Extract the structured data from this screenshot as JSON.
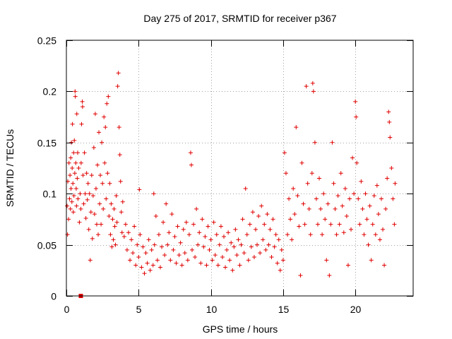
{
  "chart_data": {
    "type": "scatter",
    "title": "Day 275 of 2017, SRMTID for receiver p367",
    "xlabel": "GPS time / hours",
    "ylabel": "SRMTID / TECUs",
    "xlim": [
      0,
      24
    ],
    "ylim": [
      0,
      0.25
    ],
    "xticks": [
      0,
      5,
      10,
      15,
      20
    ],
    "xtick_labels": [
      "0",
      "5",
      "10",
      "15",
      "20"
    ],
    "yticks": [
      0,
      0.05,
      0.1,
      0.15,
      0.2,
      0.25
    ],
    "ytick_labels": [
      "0",
      "0.05",
      "0.1",
      "0.15",
      "0.2",
      "0.25"
    ],
    "grid": true,
    "marker": "+",
    "color": "#e00000",
    "series": [
      {
        "name": "SRMTID",
        "points": [
          [
            0.05,
            0.088
          ],
          [
            0.08,
            0.06
          ],
          [
            0.1,
            0.112
          ],
          [
            0.15,
            0.075
          ],
          [
            0.18,
            0.13
          ],
          [
            0.22,
            0.095
          ],
          [
            0.25,
            0.118
          ],
          [
            0.28,
            0.085
          ],
          [
            0.3,
            0.135
          ],
          [
            0.32,
            0.105
          ],
          [
            0.35,
            0.15
          ],
          [
            0.38,
            0.092
          ],
          [
            0.4,
            0.125
          ],
          [
            0.42,
            0.168
          ],
          [
            0.45,
            0.11
          ],
          [
            0.48,
            0.082
          ],
          [
            0.5,
            0.14
          ],
          [
            0.52,
            0.098
          ],
          [
            0.55,
            0.152
          ],
          [
            0.58,
            0.12
          ],
          [
            0.6,
            0.2
          ],
          [
            0.62,
            0.195
          ],
          [
            0.65,
            0.13
          ],
          [
            0.68,
            0.105
          ],
          [
            0.7,
            0.088
          ],
          [
            0.72,
            0.178
          ],
          [
            0.75,
            0.115
          ],
          [
            0.78,
            0.14
          ],
          [
            0.8,
            0.095
          ],
          [
            0.85,
            0.125
          ],
          [
            0.9,
            0.072
          ],
          [
            0.95,
            0.1
          ],
          [
            1.0,
            0.085
          ],
          [
            1.02,
            0.13
          ],
          [
            1.05,
            0.168
          ],
          [
            1.1,
            0.19
          ],
          [
            1.12,
            0.185
          ],
          [
            1.15,
            0.118
          ],
          [
            1.2,
            0.09
          ],
          [
            1.25,
            0.14
          ],
          [
            1.3,
            0.1
          ],
          [
            1.35,
            0.076
          ],
          [
            1.4,
            0.12
          ],
          [
            1.45,
            0.094
          ],
          [
            1.5,
            0.11
          ],
          [
            1.55,
            0.065
          ],
          [
            1.6,
            0.1
          ],
          [
            1.65,
            0.035
          ],
          [
            1.7,
            0.082
          ],
          [
            1.75,
            0.118
          ],
          [
            1.8,
            0.056
          ],
          [
            1.85,
            0.098
          ],
          [
            1.9,
            0.145
          ],
          [
            1.95,
            0.08
          ],
          [
            2.0,
            0.178
          ],
          [
            2.05,
            0.105
          ],
          [
            2.1,
            0.07
          ],
          [
            2.15,
            0.128
          ],
          [
            2.2,
            0.06
          ],
          [
            2.25,
            0.16
          ],
          [
            2.3,
            0.09
          ],
          [
            2.35,
            0.118
          ],
          [
            2.4,
            0.07
          ],
          [
            2.45,
            0.15
          ],
          [
            2.5,
            0.11
          ],
          [
            2.55,
            0.085
          ],
          [
            2.6,
            0.175
          ],
          [
            2.65,
            0.13
          ],
          [
            2.7,
            0.165
          ],
          [
            2.75,
            0.095
          ],
          [
            2.8,
            0.188
          ],
          [
            2.85,
            0.12
          ],
          [
            2.9,
            0.195
          ],
          [
            2.95,
            0.078
          ],
          [
            3.0,
            0.11
          ],
          [
            3.05,
            0.06
          ],
          [
            3.1,
            0.09
          ],
          [
            3.15,
            0.048
          ],
          [
            3.2,
            0.075
          ],
          [
            3.25,
            0.055
          ],
          [
            3.3,
            0.085
          ],
          [
            3.35,
            0.068
          ],
          [
            3.4,
            0.05
          ],
          [
            3.45,
            0.098
          ],
          [
            3.5,
            0.072
          ],
          [
            3.55,
            0.205
          ],
          [
            3.6,
            0.218
          ],
          [
            3.65,
            0.165
          ],
          [
            3.7,
            0.138
          ],
          [
            3.75,
            0.112
          ],
          [
            3.8,
            0.082
          ],
          [
            3.85,
            0.062
          ],
          [
            3.9,
            0.092
          ],
          [
            4.0,
            0.058
          ],
          [
            4.1,
            0.07
          ],
          [
            4.2,
            0.045
          ],
          [
            4.3,
            0.062
          ],
          [
            4.4,
            0.035
          ],
          [
            4.5,
            0.055
          ],
          [
            4.6,
            0.042
          ],
          [
            4.7,
            0.068
          ],
          [
            4.8,
            0.03
          ],
          [
            4.9,
            0.05
          ],
          [
            5.0,
            0.038
          ],
          [
            5.05,
            0.104
          ],
          [
            5.1,
            0.06
          ],
          [
            5.2,
            0.028
          ],
          [
            5.3,
            0.048
          ],
          [
            5.4,
            0.022
          ],
          [
            5.5,
            0.042
          ],
          [
            5.6,
            0.032
          ],
          [
            5.7,
            0.055
          ],
          [
            5.8,
            0.025
          ],
          [
            5.9,
            0.045
          ],
          [
            6.0,
            0.03
          ],
          [
            6.05,
            0.1
          ],
          [
            6.1,
            0.05
          ],
          [
            6.2,
            0.078
          ],
          [
            6.3,
            0.035
          ],
          [
            6.4,
            0.06
          ],
          [
            6.5,
            0.028
          ],
          [
            6.6,
            0.048
          ],
          [
            6.7,
            0.072
          ],
          [
            6.8,
            0.04
          ],
          [
            6.9,
            0.09
          ],
          [
            7.0,
            0.05
          ],
          [
            7.1,
            0.062
          ],
          [
            7.2,
            0.035
          ],
          [
            7.3,
            0.08
          ],
          [
            7.4,
            0.045
          ],
          [
            7.5,
            0.058
          ],
          [
            7.6,
            0.032
          ],
          [
            7.7,
            0.068
          ],
          [
            7.8,
            0.04
          ],
          [
            7.9,
            0.052
          ],
          [
            8.0,
            0.03
          ],
          [
            8.1,
            0.065
          ],
          [
            8.2,
            0.042
          ],
          [
            8.3,
            0.072
          ],
          [
            8.4,
            0.035
          ],
          [
            8.5,
            0.06
          ],
          [
            8.6,
            0.14
          ],
          [
            8.65,
            0.128
          ],
          [
            8.7,
            0.045
          ],
          [
            8.8,
            0.07
          ],
          [
            8.9,
            0.038
          ],
          [
            9.0,
            0.085
          ],
          [
            9.1,
            0.05
          ],
          [
            9.2,
            0.062
          ],
          [
            9.3,
            0.032
          ],
          [
            9.4,
            0.075
          ],
          [
            9.5,
            0.048
          ],
          [
            9.6,
            0.058
          ],
          [
            9.7,
            0.03
          ],
          [
            9.8,
            0.068
          ],
          [
            9.9,
            0.045
          ],
          [
            10.0,
            0.055
          ],
          [
            10.1,
            0.035
          ],
          [
            10.2,
            0.072
          ],
          [
            10.3,
            0.04
          ],
          [
            10.4,
            0.06
          ],
          [
            10.5,
            0.03
          ],
          [
            10.6,
            0.05
          ],
          [
            10.7,
            0.068
          ],
          [
            10.8,
            0.038
          ],
          [
            10.9,
            0.058
          ],
          [
            11.0,
            0.028
          ],
          [
            11.1,
            0.045
          ],
          [
            11.2,
            0.062
          ],
          [
            11.3,
            0.035
          ],
          [
            11.4,
            0.052
          ],
          [
            11.5,
            0.025
          ],
          [
            11.6,
            0.048
          ],
          [
            11.7,
            0.065
          ],
          [
            11.8,
            0.04
          ],
          [
            11.9,
            0.055
          ],
          [
            12.0,
            0.03
          ],
          [
            12.1,
            0.05
          ],
          [
            12.2,
            0.075
          ],
          [
            12.3,
            0.042
          ],
          [
            12.4,
            0.105
          ],
          [
            12.5,
            0.06
          ],
          [
            12.6,
            0.035
          ],
          [
            12.7,
            0.07
          ],
          [
            12.8,
            0.048
          ],
          [
            12.9,
            0.082
          ],
          [
            13.0,
            0.038
          ],
          [
            13.1,
            0.065
          ],
          [
            13.2,
            0.05
          ],
          [
            13.3,
            0.078
          ],
          [
            13.4,
            0.042
          ],
          [
            13.5,
            0.088
          ],
          [
            13.6,
            0.055
          ],
          [
            13.7,
            0.07
          ],
          [
            13.8,
            0.045
          ],
          [
            13.9,
            0.08
          ],
          [
            14.0,
            0.05
          ],
          [
            14.1,
            0.065
          ],
          [
            14.2,
            0.038
          ],
          [
            14.3,
            0.075
          ],
          [
            14.4,
            0.048
          ],
          [
            14.5,
            0.06
          ],
          [
            14.6,
            0.032
          ],
          [
            14.7,
            0.055
          ],
          [
            14.8,
            0.025
          ],
          [
            14.9,
            0.045
          ],
          [
            15.0,
            0.035
          ],
          [
            15.1,
            0.14
          ],
          [
            15.2,
            0.12
          ],
          [
            15.3,
            0.06
          ],
          [
            15.4,
            0.095
          ],
          [
            15.5,
            0.075
          ],
          [
            15.6,
            0.055
          ],
          [
            15.7,
            0.105
          ],
          [
            15.8,
            0.08
          ],
          [
            15.9,
            0.165
          ],
          [
            16.0,
            0.098
          ],
          [
            16.1,
            0.068
          ],
          [
            16.2,
            0.02
          ],
          [
            16.3,
            0.13
          ],
          [
            16.4,
            0.09
          ],
          [
            16.5,
            0.07
          ],
          [
            16.6,
            0.205
          ],
          [
            16.7,
            0.11
          ],
          [
            16.8,
            0.085
          ],
          [
            16.9,
            0.06
          ],
          [
            17.0,
            0.12
          ],
          [
            17.05,
            0.208
          ],
          [
            17.1,
            0.2
          ],
          [
            17.2,
            0.15
          ],
          [
            17.3,
            0.095
          ],
          [
            17.4,
            0.07
          ],
          [
            17.5,
            0.115
          ],
          [
            17.6,
            0.085
          ],
          [
            17.7,
            0.06
          ],
          [
            17.8,
            0.1
          ],
          [
            17.9,
            0.075
          ],
          [
            18.0,
            0.035
          ],
          [
            18.1,
            0.09
          ],
          [
            18.2,
            0.02
          ],
          [
            18.3,
            0.07
          ],
          [
            18.4,
            0.15
          ],
          [
            18.5,
            0.11
          ],
          [
            18.6,
            0.085
          ],
          [
            18.7,
            0.06
          ],
          [
            18.8,
            0.098
          ],
          [
            18.9,
            0.07
          ],
          [
            19.0,
            0.12
          ],
          [
            19.1,
            0.088
          ],
          [
            19.2,
            0.062
          ],
          [
            19.3,
            0.105
          ],
          [
            19.4,
            0.078
          ],
          [
            19.5,
            0.03
          ],
          [
            19.6,
            0.095
          ],
          [
            19.7,
            0.065
          ],
          [
            19.8,
            0.135
          ],
          [
            19.9,
            0.1
          ],
          [
            20.0,
            0.19
          ],
          [
            20.05,
            0.175
          ],
          [
            20.1,
            0.13
          ],
          [
            20.2,
            0.095
          ],
          [
            20.3,
            0.07
          ],
          [
            20.4,
            0.112
          ],
          [
            20.5,
            0.085
          ],
          [
            20.6,
            0.06
          ],
          [
            20.7,
            0.1
          ],
          [
            20.8,
            0.075
          ],
          [
            20.9,
            0.05
          ],
          [
            21.0,
            0.088
          ],
          [
            21.1,
            0.035
          ],
          [
            21.2,
            0.07
          ],
          [
            21.3,
            0.098
          ],
          [
            21.4,
            0.06
          ],
          [
            21.5,
            0.108
          ],
          [
            21.6,
            0.08
          ],
          [
            21.7,
            0.055
          ],
          [
            21.8,
            0.095
          ],
          [
            21.9,
            0.065
          ],
          [
            22.0,
            0.03
          ],
          [
            22.1,
            0.085
          ],
          [
            22.2,
            0.115
          ],
          [
            22.3,
            0.18
          ],
          [
            22.35,
            0.17
          ],
          [
            22.4,
            0.155
          ],
          [
            22.5,
            0.125
          ],
          [
            22.6,
            0.095
          ],
          [
            22.7,
            0.07
          ],
          [
            22.75,
            0.11
          ]
        ]
      }
    ],
    "anomaly_point": [
      1.0,
      0
    ]
  }
}
